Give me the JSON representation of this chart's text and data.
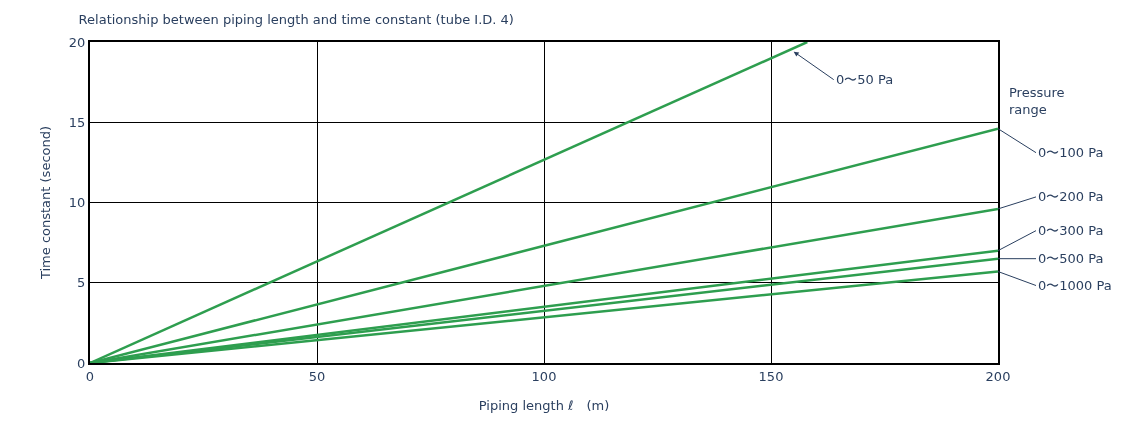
{
  "chart_data": {
    "type": "line",
    "title": "Relationship between piping length and time constant (tube I.D. 4)",
    "xlabel": "Piping length ℓ　(m)",
    "ylabel": "Time constant (second)",
    "xlim": [
      0,
      200
    ],
    "ylim": [
      0,
      20
    ],
    "xticks": [
      0,
      50,
      100,
      150,
      200
    ],
    "yticks": [
      0,
      5,
      10,
      15,
      20
    ],
    "grid": true,
    "legend": false,
    "marker": "none",
    "line_style": "solid",
    "series": [
      {
        "name": "0〜50 Pa",
        "color": "#2e9e4f",
        "x": [
          0,
          158
        ],
        "values": [
          0,
          20
        ]
      },
      {
        "name": "0〜100 Pa",
        "color": "#2e9e4f",
        "x": [
          0,
          200
        ],
        "values": [
          0,
          14.6
        ]
      },
      {
        "name": "0〜200 Pa",
        "color": "#2e9e4f",
        "x": [
          0,
          200
        ],
        "values": [
          0,
          9.6
        ]
      },
      {
        "name": "0〜300 Pa",
        "color": "#2e9e4f",
        "x": [
          0,
          200
        ],
        "values": [
          0,
          7.0
        ]
      },
      {
        "name": "0〜500 Pa",
        "color": "#2e9e4f",
        "x": [
          0,
          200
        ],
        "values": [
          0,
          6.5
        ]
      },
      {
        "name": "0〜1000 Pa",
        "color": "#2e9e4f",
        "x": [
          0,
          200
        ],
        "values": [
          0,
          5.7
        ]
      }
    ],
    "annotations": [
      "Pressure range"
    ]
  }
}
